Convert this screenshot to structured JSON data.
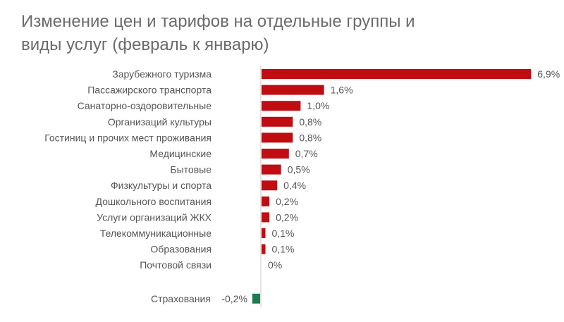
{
  "chart_data": {
    "type": "bar",
    "orientation": "horizontal",
    "title": "Изменение цен и тарифов на отдельные группы и виды услуг (февраль к январю)",
    "title_lines": [
      "Изменение цен и тарифов на отдельные группы и",
      "виды услуг (февраль к январю)"
    ],
    "categories": [
      "Зарубежного туризма",
      "Пассажирского транспорта",
      "Санаторно-оздоровительные",
      "Организаций культуры",
      "Гостиниц и прочих мест проживания",
      "Медицинские",
      "Бытовые",
      "Физкультуры и спорта",
      "Дошкольного воспитания",
      "Услуги организаций ЖКХ",
      "Телекоммуникационные",
      "Образования",
      "Почтовой связи",
      "Страхования"
    ],
    "values": [
      6.9,
      1.6,
      1.0,
      0.8,
      0.8,
      0.7,
      0.5,
      0.4,
      0.2,
      0.2,
      0.1,
      0.1,
      0.0,
      -0.2
    ],
    "value_labels": [
      "6,9%",
      "1,6%",
      "1,0%",
      "0,8%",
      "0,8%",
      "0,7%",
      "0,5%",
      "0,4%",
      "0,2%",
      "0,2%",
      "0,1%",
      "0,1%",
      "0%",
      "-0,2%"
    ],
    "colors": {
      "positive": "#c00d12",
      "negative": "#1e7b4f",
      "axis": "#c8c8c8",
      "text": "#555555",
      "title": "#6b6b6b"
    },
    "xlim": [
      -0.2,
      6.9
    ],
    "grid": false,
    "legend": "none"
  }
}
